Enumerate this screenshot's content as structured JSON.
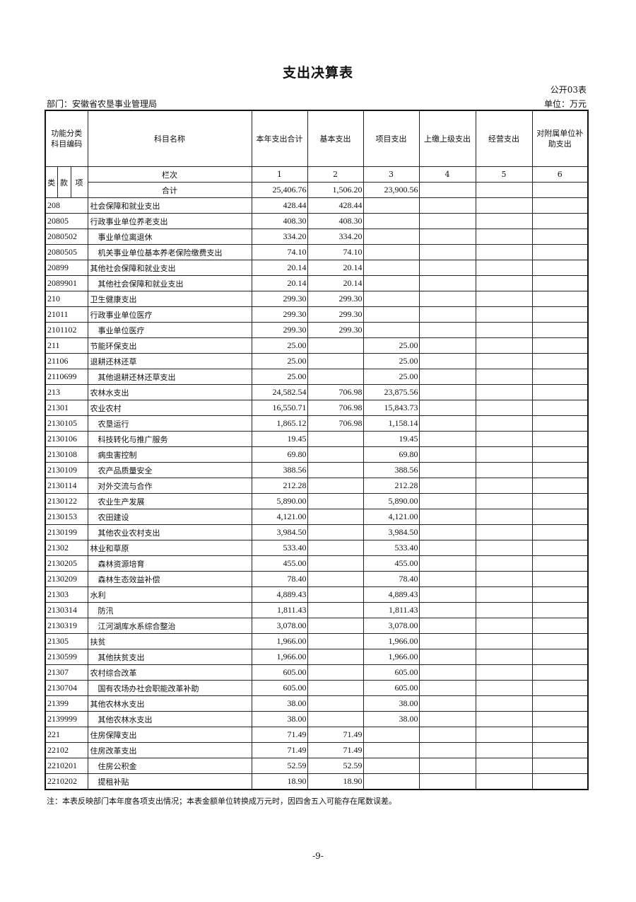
{
  "title": "支出决算表",
  "form_no": "公开03表",
  "department": "部门：安徽省农垦事业管理局",
  "unit": "单位：万元",
  "headers": {
    "code": "功能分类科目编码",
    "name": "科目名称",
    "cols": [
      "本年支出合计",
      "基本支出",
      "项目支出",
      "上缴上级支出",
      "经营支出",
      "对附属单位补助支出"
    ],
    "lei": "类",
    "kuan": "款",
    "xiang": "项",
    "lanci": "栏次",
    "col_numbers": [
      "1",
      "2",
      "3",
      "4",
      "5",
      "6"
    ]
  },
  "total": {
    "label": "合计",
    "values": [
      "25,406.76",
      "1,506.20",
      "23,900.56",
      "",
      "",
      ""
    ]
  },
  "rows": [
    {
      "code": "208",
      "name": "社会保障和就业支出",
      "v": [
        "428.44",
        "428.44",
        ""
      ]
    },
    {
      "code": "20805",
      "name": "行政事业单位养老支出",
      "v": [
        "408.30",
        "408.30",
        ""
      ]
    },
    {
      "code": "2080502",
      "name": "事业单位离退休",
      "v": [
        "334.20",
        "334.20",
        ""
      ]
    },
    {
      "code": "2080505",
      "name": "机关事业单位基本养老保险缴费支出",
      "v": [
        "74.10",
        "74.10",
        ""
      ]
    },
    {
      "code": "20899",
      "name": "其他社会保障和就业支出",
      "v": [
        "20.14",
        "20.14",
        ""
      ]
    },
    {
      "code": "2089901",
      "name": "其他社会保障和就业支出",
      "v": [
        "20.14",
        "20.14",
        ""
      ]
    },
    {
      "code": "210",
      "name": "卫生健康支出",
      "v": [
        "299.30",
        "299.30",
        ""
      ]
    },
    {
      "code": "21011",
      "name": "行政事业单位医疗",
      "v": [
        "299.30",
        "299.30",
        ""
      ]
    },
    {
      "code": "2101102",
      "name": "事业单位医疗",
      "v": [
        "299.30",
        "299.30",
        ""
      ]
    },
    {
      "code": "211",
      "name": "节能环保支出",
      "v": [
        "25.00",
        "",
        "25.00"
      ]
    },
    {
      "code": "21106",
      "name": "退耕还林还草",
      "v": [
        "25.00",
        "",
        "25.00"
      ]
    },
    {
      "code": "2110699",
      "name": "其他退耕还林还草支出",
      "v": [
        "25.00",
        "",
        "25.00"
      ]
    },
    {
      "code": "213",
      "name": "农林水支出",
      "v": [
        "24,582.54",
        "706.98",
        "23,875.56"
      ]
    },
    {
      "code": "21301",
      "name": "农业农村",
      "v": [
        "16,550.71",
        "706.98",
        "15,843.73"
      ]
    },
    {
      "code": "2130105",
      "name": "农垦运行",
      "v": [
        "1,865.12",
        "706.98",
        "1,158.14"
      ]
    },
    {
      "code": "2130106",
      "name": "科技转化与推广服务",
      "v": [
        "19.45",
        "",
        "19.45"
      ]
    },
    {
      "code": "2130108",
      "name": "病虫害控制",
      "v": [
        "69.80",
        "",
        "69.80"
      ]
    },
    {
      "code": "2130109",
      "name": "农产品质量安全",
      "v": [
        "388.56",
        "",
        "388.56"
      ]
    },
    {
      "code": "2130114",
      "name": "对外交流与合作",
      "v": [
        "212.28",
        "",
        "212.28"
      ]
    },
    {
      "code": "2130122",
      "name": "农业生产发展",
      "v": [
        "5,890.00",
        "",
        "5,890.00"
      ]
    },
    {
      "code": "2130153",
      "name": "农田建设",
      "v": [
        "4,121.00",
        "",
        "4,121.00"
      ]
    },
    {
      "code": "2130199",
      "name": "其他农业农村支出",
      "v": [
        "3,984.50",
        "",
        "3,984.50"
      ]
    },
    {
      "code": "21302",
      "name": "林业和草原",
      "v": [
        "533.40",
        "",
        "533.40"
      ]
    },
    {
      "code": "2130205",
      "name": "森林资源培育",
      "v": [
        "455.00",
        "",
        "455.00"
      ]
    },
    {
      "code": "2130209",
      "name": "森林生态效益补偿",
      "v": [
        "78.40",
        "",
        "78.40"
      ]
    },
    {
      "code": "21303",
      "name": "水利",
      "v": [
        "4,889.43",
        "",
        "4,889.43"
      ]
    },
    {
      "code": "2130314",
      "name": "防汛",
      "v": [
        "1,811.43",
        "",
        "1,811.43"
      ]
    },
    {
      "code": "2130319",
      "name": "江河湖库水系综合整治",
      "v": [
        "3,078.00",
        "",
        "3,078.00"
      ]
    },
    {
      "code": "21305",
      "name": "扶贫",
      "v": [
        "1,966.00",
        "",
        "1,966.00"
      ]
    },
    {
      "code": "2130599",
      "name": "其他扶贫支出",
      "v": [
        "1,966.00",
        "",
        "1,966.00"
      ]
    },
    {
      "code": "21307",
      "name": "农村综合改革",
      "v": [
        "605.00",
        "",
        "605.00"
      ]
    },
    {
      "code": "2130704",
      "name": "国有农场办社会职能改革补助",
      "v": [
        "605.00",
        "",
        "605.00"
      ]
    },
    {
      "code": "21399",
      "name": "其他农林水支出",
      "v": [
        "38.00",
        "",
        "38.00"
      ]
    },
    {
      "code": "2139999",
      "name": "其他农林水支出",
      "v": [
        "38.00",
        "",
        "38.00"
      ]
    },
    {
      "code": "221",
      "name": "住房保障支出",
      "v": [
        "71.49",
        "71.49",
        ""
      ]
    },
    {
      "code": "22102",
      "name": "住房改革支出",
      "v": [
        "71.49",
        "71.49",
        ""
      ]
    },
    {
      "code": "2210201",
      "name": "住房公积金",
      "v": [
        "52.59",
        "52.59",
        ""
      ]
    },
    {
      "code": "2210202",
      "name": "提租补贴",
      "v": [
        "18.90",
        "18.90",
        ""
      ]
    }
  ],
  "note": "注：本表反映部门本年度各项支出情况；本表金额单位转换成万元时，因四舍五入可能存在尾数误差。",
  "page_number": "-9-"
}
